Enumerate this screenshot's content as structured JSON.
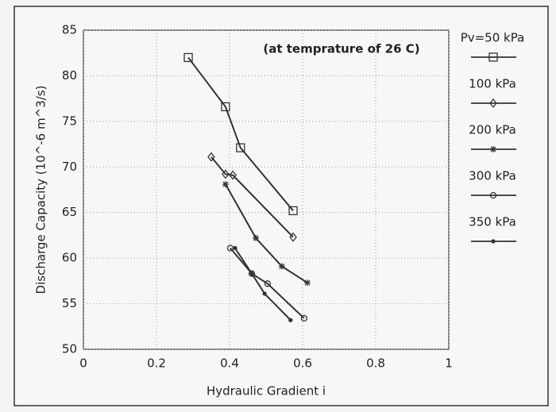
{
  "chart_data": {
    "type": "line",
    "annotation": "(at temprature of 26 C)",
    "x_label": "Hydraulic Gradient i",
    "y_label": "Discharge Capacity (10^-6 m^3/s)",
    "xlim": [
      0,
      1
    ],
    "xticks": [
      0,
      0.2,
      0.4,
      0.6,
      0.8,
      1
    ],
    "ylim": [
      50,
      85
    ],
    "yticks": [
      50,
      55,
      60,
      65,
      70,
      75,
      80,
      85
    ],
    "grid": true,
    "legend": "right",
    "series": [
      {
        "name": "Pv=50 kPa",
        "color": "#333333",
        "marker": "square",
        "x": [
          0.287,
          0.389,
          0.43,
          0.574
        ],
        "values": [
          82.0,
          76.6,
          72.1,
          65.2
        ]
      },
      {
        "name": "100 kPa",
        "color": "#333333",
        "marker": "diamond",
        "x": [
          0.35,
          0.389,
          0.409,
          0.574
        ],
        "values": [
          71.1,
          69.2,
          69.1,
          62.3
        ]
      },
      {
        "name": "200 kPa",
        "color": "#333333",
        "marker": "asterisk",
        "x": [
          0.389,
          0.472,
          0.543,
          0.613
        ],
        "values": [
          68.1,
          62.2,
          59.1,
          57.3
        ]
      },
      {
        "name": "300 kPa",
        "color": "#333333",
        "marker": "circle",
        "x": [
          0.402,
          0.461,
          0.504,
          0.604
        ],
        "values": [
          61.1,
          58.3,
          57.2,
          53.4
        ]
      },
      {
        "name": "350 kPa",
        "color": "#333333",
        "marker": "dot",
        "x": [
          0.415,
          0.461,
          0.496,
          0.567
        ],
        "values": [
          61.1,
          58.3,
          56.1,
          53.2
        ]
      }
    ]
  }
}
